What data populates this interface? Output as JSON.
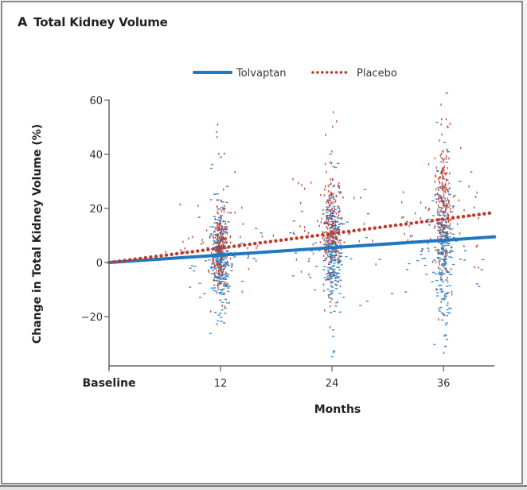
{
  "panel": {
    "letter": "A",
    "title": "Total Kidney Volume"
  },
  "colors": {
    "tolvaptan": "#1f78c1",
    "placebo": "#c0392b",
    "axis": "#666666"
  },
  "chart_data": {
    "type": "scatter",
    "title": "Total Kidney Volume",
    "xlabel": "Months",
    "ylabel": "Change in Total Kidney Volume (%)",
    "xlim": [
      0,
      41.5
    ],
    "ylim": [
      -38,
      62
    ],
    "x_ticks": [
      {
        "value": 0,
        "label": "Baseline"
      },
      {
        "value": 12,
        "label": "12"
      },
      {
        "value": 24,
        "label": "24"
      },
      {
        "value": 36,
        "label": "36"
      }
    ],
    "y_ticks": [
      {
        "value": 60,
        "label": "60"
      },
      {
        "value": 40,
        "label": "40"
      },
      {
        "value": 20,
        "label": "20"
      },
      {
        "value": 0,
        "label": "0"
      },
      {
        "value": -20,
        "label": "−20"
      }
    ],
    "grid": false,
    "legend": {
      "position": "top-center",
      "entries": [
        "Tolvaptan",
        "Placebo"
      ]
    },
    "series": [
      {
        "name": "Tolvaptan",
        "style": "solid",
        "trend_line": {
          "x": [
            0,
            41.5
          ],
          "y": [
            0,
            9.5
          ]
        },
        "clusters": [
          {
            "month": 12,
            "mean": 2,
            "sd": 9,
            "min": -30,
            "max": 42
          },
          {
            "month": 24,
            "mean": 4,
            "sd": 11,
            "min": -36,
            "max": 42
          },
          {
            "month": 36,
            "mean": 6,
            "sd": 13,
            "min": -32,
            "max": 64
          }
        ]
      },
      {
        "name": "Placebo",
        "style": "dotted",
        "trend_line": {
          "x": [
            0,
            41.5
          ],
          "y": [
            0,
            18.5
          ]
        },
        "clusters": [
          {
            "month": 12,
            "mean": 6,
            "sd": 8,
            "min": -33,
            "max": 52
          },
          {
            "month": 24,
            "mean": 12,
            "sd": 10,
            "min": -35,
            "max": 58
          },
          {
            "month": 36,
            "mean": 19,
            "sd": 13,
            "min": -36,
            "max": 62
          }
        ]
      }
    ]
  }
}
